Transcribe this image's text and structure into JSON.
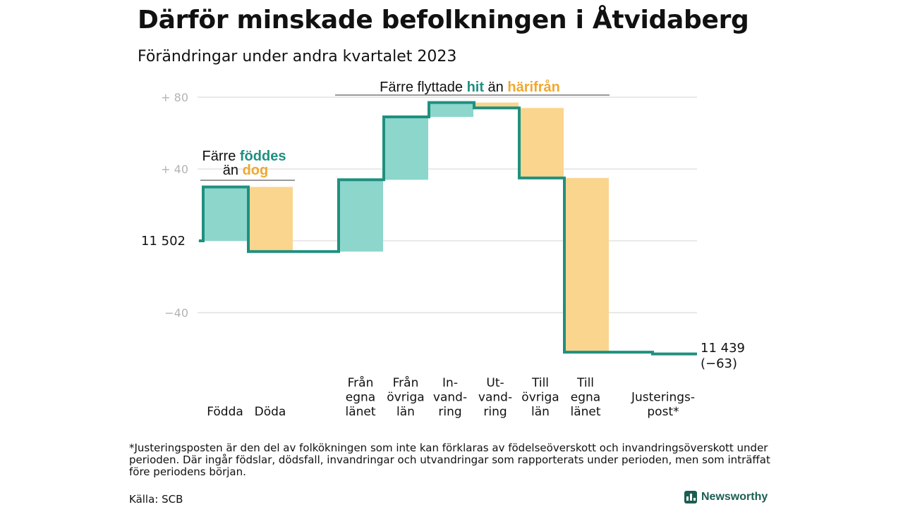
{
  "header": {
    "title": "Därför minskade befolkningen i Åtvidaberg",
    "subtitle": "Förändringar under andra kvartalet 2023"
  },
  "colors": {
    "increase": "#8dd6cb",
    "decrease": "#fad58e",
    "line": "#1f9080",
    "grid": "#e2e2e2",
    "teal_text": "#1f9080",
    "orange_text": "#f0a830"
  },
  "chart_data": {
    "type": "waterfall",
    "title": "Därför minskade befolkningen i Åtvidaberg",
    "subtitle": "Förändringar under andra kvartalet 2023",
    "start_value": 11502,
    "end_value": 11439,
    "net_change": -63,
    "start_label": "11  502",
    "end_label_line1": "11 439",
    "end_label_line2": "(−63)",
    "ylim": [
      -67,
      86
    ],
    "yticks": [
      {
        "value": 80,
        "label": "+  80"
      },
      {
        "value": 40,
        "label": "+  40"
      },
      {
        "value": -40,
        "label": "−40"
      }
    ],
    "grid": true,
    "categories": [
      {
        "label_lines": [
          "Födda"
        ],
        "kind": "increase",
        "from": 0,
        "to": 30
      },
      {
        "label_lines": [
          "Döda"
        ],
        "kind": "decrease",
        "from": 30,
        "to": -6
      },
      {
        "label_lines": [
          "Från",
          "egna",
          "länet"
        ],
        "kind": "increase",
        "from": -6,
        "to": 34
      },
      {
        "label_lines": [
          "Från",
          "övriga",
          "län"
        ],
        "kind": "increase",
        "from": 34,
        "to": 69
      },
      {
        "label_lines": [
          "In-",
          "vand-",
          "ring"
        ],
        "kind": "increase",
        "from": 69,
        "to": 77
      },
      {
        "label_lines": [
          "Ut-",
          "vand-",
          "ring"
        ],
        "kind": "decrease",
        "from": 77,
        "to": 74
      },
      {
        "label_lines": [
          "Till",
          "övriga",
          "län"
        ],
        "kind": "decrease",
        "from": 74,
        "to": 35
      },
      {
        "label_lines": [
          "Till",
          "egna",
          "länet"
        ],
        "kind": "decrease",
        "from": 35,
        "to": -62
      },
      {
        "label_lines": [
          "Justerings-",
          "post*"
        ],
        "kind": "adjustment",
        "from": -62,
        "to": -63
      }
    ],
    "annotations": [
      {
        "id": "births",
        "line1": [
          "Färre ",
          "föddes"
        ],
        "line2": [
          "än ",
          "dog"
        ]
      },
      {
        "id": "migration",
        "line1": [
          "Färre flyttade ",
          "hit",
          " än ",
          "härifrån"
        ]
      }
    ]
  },
  "footnote": "*Justeringsposten är den del av folkökningen som inte kan förklaras av födelseöverskott och invandringsöverskott under perioden. Där ingår födslar, dödsfall, invandringar och utvandringar som rapporterats under perioden, men som inträffat före periodens början.",
  "source": "Källa: SCB",
  "brand": {
    "name": "Newsworthy",
    "icon": "bar-chart-icon"
  }
}
